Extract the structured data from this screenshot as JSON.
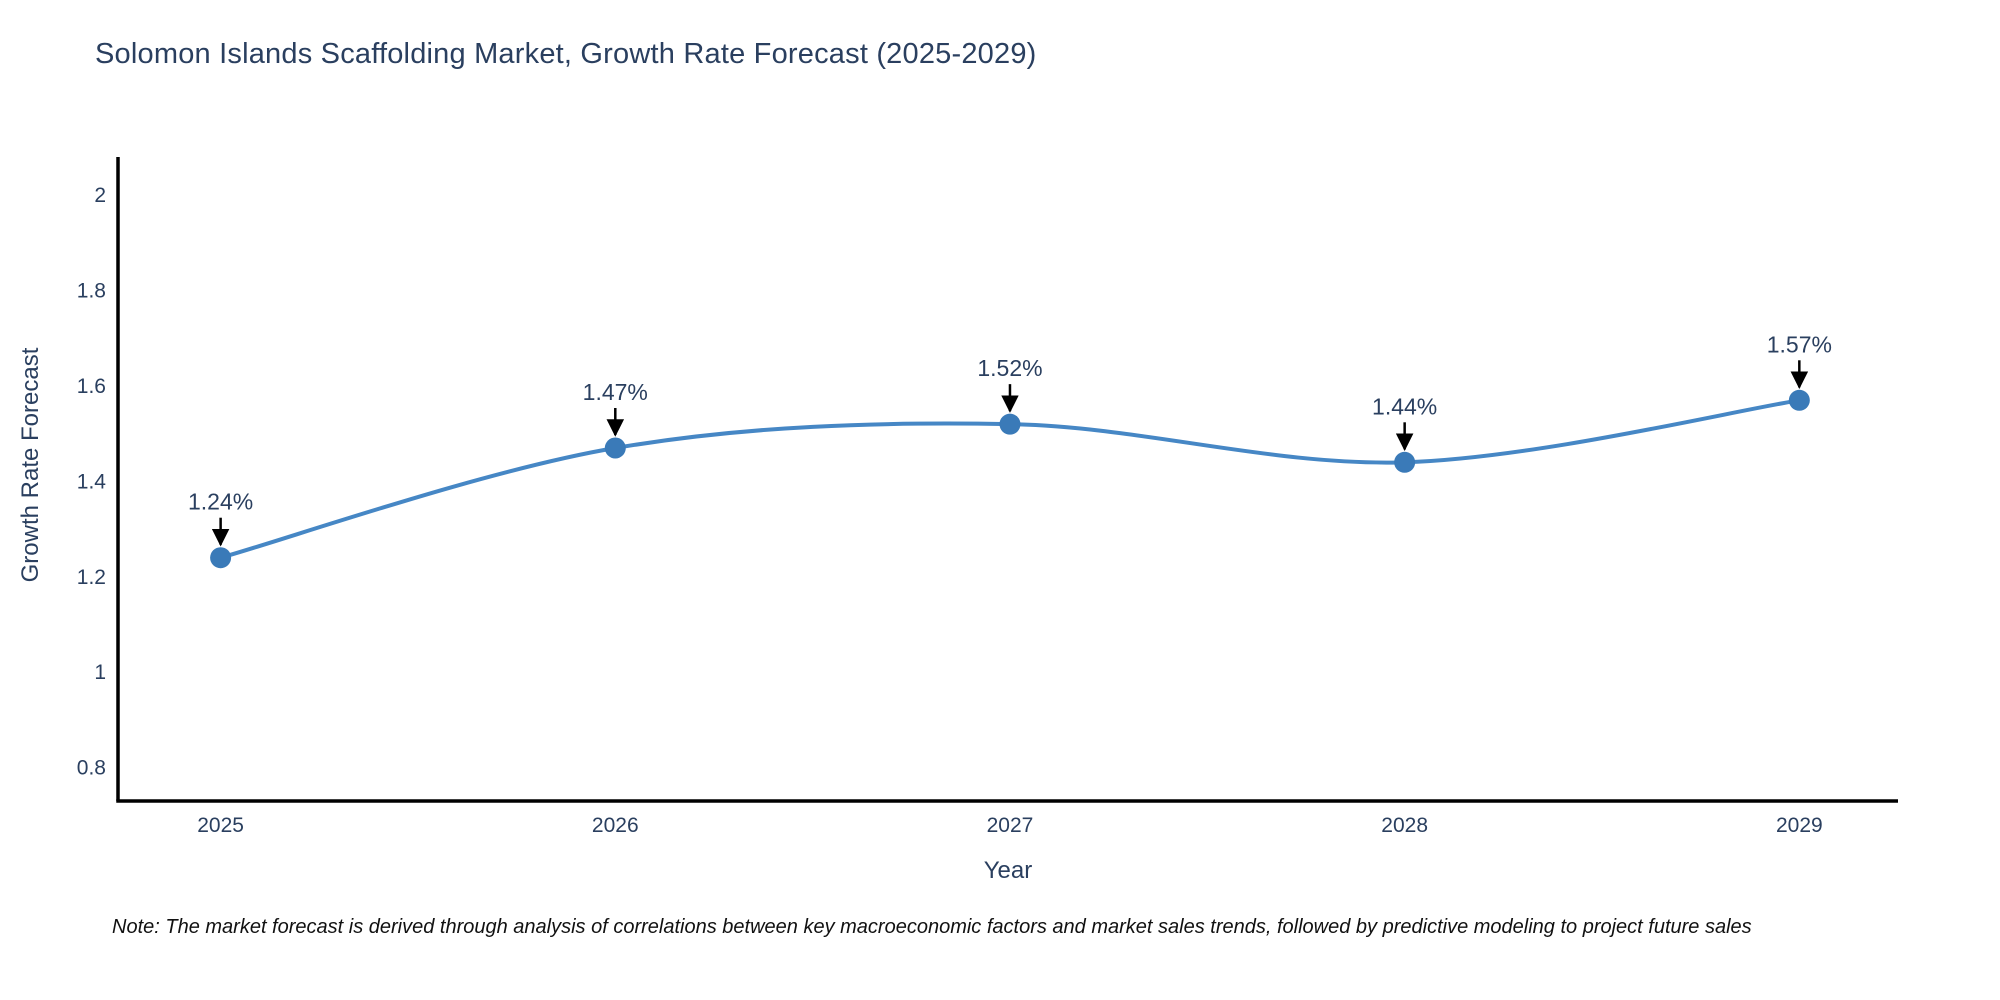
{
  "title": "Solomon Islands Scaffolding Market, Growth Rate Forecast (2025-2029)",
  "note": "Note: The market forecast is derived through analysis of correlations between key macroeconomic factors and market sales trends, followed by predictive modeling to project future sales",
  "chart_data": {
    "type": "line",
    "title": "Solomon Islands Scaffolding Market, Growth Rate Forecast (2025-2029)",
    "xlabel": "Year",
    "ylabel": "Growth Rate Forecast",
    "x": [
      2025,
      2026,
      2027,
      2028,
      2029
    ],
    "values": [
      1.24,
      1.47,
      1.52,
      1.44,
      1.57
    ],
    "point_labels": [
      "1.24%",
      "1.47%",
      "1.52%",
      "1.44%",
      "1.57%"
    ],
    "xtick_labels": [
      "2025",
      "2026",
      "2027",
      "2028",
      "2029"
    ],
    "ytick_values": [
      0.8,
      1,
      1.2,
      1.4,
      1.6,
      1.8,
      2
    ],
    "ytick_labels": [
      "0.8",
      "1",
      "1.2",
      "1.4",
      "1.6",
      "1.8",
      "2"
    ],
    "xlim": [
      2024.74,
      2029.25
    ],
    "ylim": [
      0.73,
      2.08
    ],
    "grid": false,
    "legend_position": "none",
    "line_shape": "spline",
    "line_color": "#4687c5",
    "marker_color": "#3a7ab8",
    "annotation_arrow_color": "#000000",
    "axis_line_color": "#000000",
    "text_color": "#2a3f5f"
  }
}
